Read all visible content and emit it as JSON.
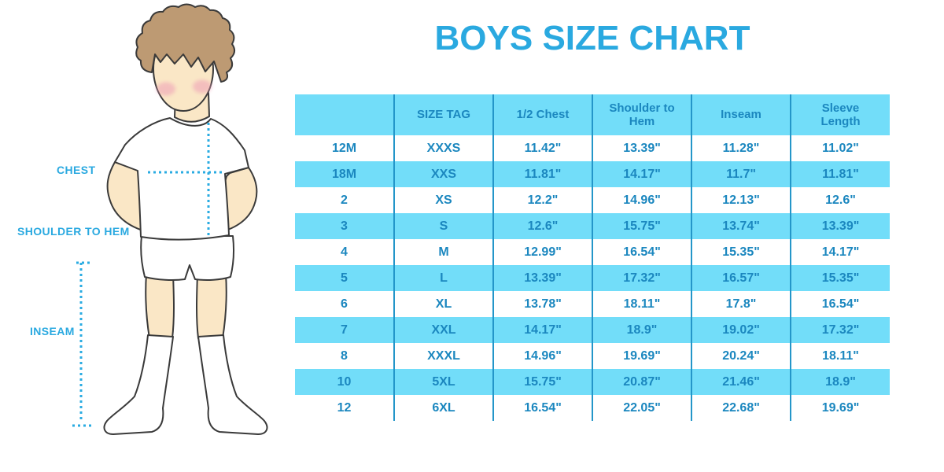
{
  "title": "BOYS SIZE CHART",
  "figure": {
    "labels": {
      "chest": "CHEST",
      "shoulder_to_hem": "SHOULDER TO HEM",
      "inseam": "INSEAM"
    }
  },
  "colors": {
    "stripe_cyan": "#72DDF9",
    "divider_blue": "#2496C9",
    "table_text_blue": "#1B87BF",
    "title_blue": "#2AA9E0",
    "dotted_line_blue": "#29ABE2"
  },
  "chart_data": {
    "type": "table",
    "title": "BOYS SIZE CHART",
    "columns": [
      "",
      "SIZE TAG",
      "1/2 Chest",
      "Shoulder to Hem",
      "Inseam",
      "Sleeve Length"
    ],
    "rows": [
      [
        "12M",
        "XXXS",
        "11.42\"",
        "13.39\"",
        "11.28\"",
        "11.02\""
      ],
      [
        "18M",
        "XXS",
        "11.81\"",
        "14.17\"",
        "11.7\"",
        "11.81\""
      ],
      [
        "2",
        "XS",
        "12.2\"",
        "14.96\"",
        "12.13\"",
        "12.6\""
      ],
      [
        "3",
        "S",
        "12.6\"",
        "15.75\"",
        "13.74\"",
        "13.39\""
      ],
      [
        "4",
        "M",
        "12.99\"",
        "16.54\"",
        "15.35\"",
        "14.17\""
      ],
      [
        "5",
        "L",
        "13.39\"",
        "17.32\"",
        "16.57\"",
        "15.35\""
      ],
      [
        "6",
        "XL",
        "13.78\"",
        "18.11\"",
        "17.8\"",
        "16.54\""
      ],
      [
        "7",
        "XXL",
        "14.17\"",
        "18.9\"",
        "19.02\"",
        "17.32\""
      ],
      [
        "8",
        "XXXL",
        "14.96\"",
        "19.69\"",
        "20.24\"",
        "18.11\""
      ],
      [
        "10",
        "5XL",
        "15.75\"",
        "20.87\"",
        "21.46\"",
        "18.9\""
      ],
      [
        "12",
        "6XL",
        "16.54\"",
        "22.05\"",
        "22.68\"",
        "19.69\""
      ]
    ],
    "layout": {
      "striped_rows": true,
      "header_background": "#72DDF9",
      "column_dividers": true
    }
  }
}
